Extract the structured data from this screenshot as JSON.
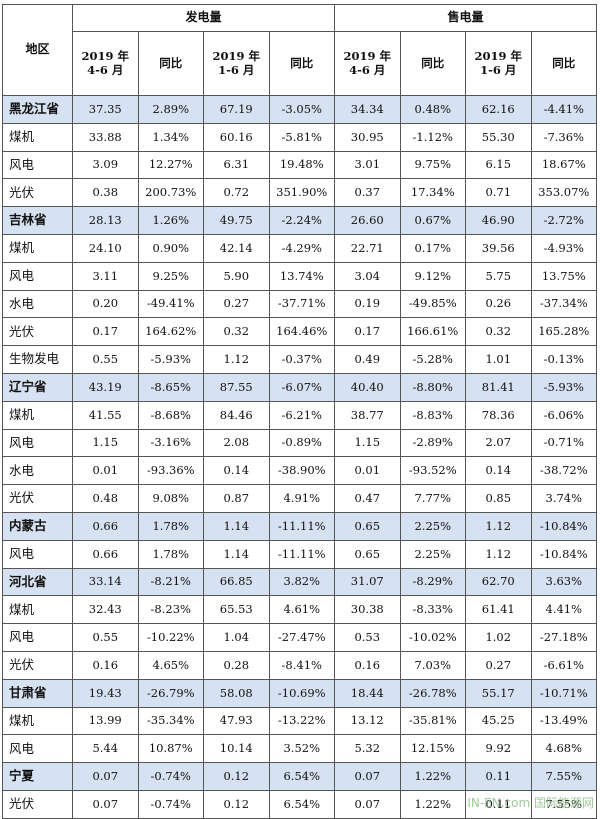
{
  "header": {
    "region": "地区",
    "generation": "发电量",
    "sales": "售电量",
    "subcols": [
      "2019 年\n4-6 月",
      "同比",
      "2019 年\n1-6 月",
      "同比",
      "2019 年\n4-6 月",
      "同比",
      "2019 年\n1-6 月",
      "同比"
    ]
  },
  "rows": [
    {
      "type": "prov",
      "cells": [
        "黑龙江省",
        "37.35",
        "2.89%",
        "67.19",
        "-3.05%",
        "34.34",
        "0.48%",
        "62.16",
        "-4.41%"
      ]
    },
    {
      "type": "sub",
      "cells": [
        "煤机",
        "33.88",
        "1.34%",
        "60.16",
        "-5.81%",
        "30.95",
        "-1.12%",
        "55.30",
        "-7.36%"
      ]
    },
    {
      "type": "sub",
      "cells": [
        "风电",
        "3.09",
        "12.27%",
        "6.31",
        "19.48%",
        "3.01",
        "9.75%",
        "6.15",
        "18.67%"
      ]
    },
    {
      "type": "sub",
      "cells": [
        "光伏",
        "0.38",
        "200.73%",
        "0.72",
        "351.90%",
        "0.37",
        "17.34%",
        "0.71",
        "353.07%"
      ]
    },
    {
      "type": "prov",
      "cells": [
        "吉林省",
        "28.13",
        "1.26%",
        "49.75",
        "-2.24%",
        "26.60",
        "0.67%",
        "46.90",
        "-2.72%"
      ]
    },
    {
      "type": "sub",
      "cells": [
        "煤机",
        "24.10",
        "0.90%",
        "42.14",
        "-4.29%",
        "22.71",
        "0.17%",
        "39.56",
        "-4.93%"
      ]
    },
    {
      "type": "sub",
      "cells": [
        "风电",
        "3.11",
        "9.25%",
        "5.90",
        "13.74%",
        "3.04",
        "9.12%",
        "5.75",
        "13.75%"
      ]
    },
    {
      "type": "sub",
      "cells": [
        "水电",
        "0.20",
        "-49.41%",
        "0.27",
        "-37.71%",
        "0.19",
        "-49.85%",
        "0.26",
        "-37.34%"
      ]
    },
    {
      "type": "sub",
      "cells": [
        "光伏",
        "0.17",
        "164.62%",
        "0.32",
        "164.46%",
        "0.17",
        "166.61%",
        "0.32",
        "165.28%"
      ]
    },
    {
      "type": "sub",
      "cells": [
        "生物发电",
        "0.55",
        "-5.93%",
        "1.12",
        "-0.37%",
        "0.49",
        "-5.28%",
        "1.01",
        "-0.13%"
      ]
    },
    {
      "type": "prov",
      "cells": [
        "辽宁省",
        "43.19",
        "-8.65%",
        "87.55",
        "-6.07%",
        "40.40",
        "-8.80%",
        "81.41",
        "-5.93%"
      ]
    },
    {
      "type": "sub",
      "cells": [
        "煤机",
        "41.55",
        "-8.68%",
        "84.46",
        "-6.21%",
        "38.77",
        "-8.83%",
        "78.36",
        "-6.06%"
      ]
    },
    {
      "type": "sub",
      "cells": [
        "风电",
        "1.15",
        "-3.16%",
        "2.08",
        "-0.89%",
        "1.15",
        "-2.89%",
        "2.07",
        "-0.71%"
      ]
    },
    {
      "type": "sub",
      "cells": [
        "水电",
        "0.01",
        "-93.36%",
        "0.14",
        "-38.90%",
        "0.01",
        "-93.52%",
        "0.14",
        "-38.72%"
      ]
    },
    {
      "type": "sub",
      "cells": [
        "光伏",
        "0.48",
        "9.08%",
        "0.87",
        "4.91%",
        "0.47",
        "7.77%",
        "0.85",
        "3.74%"
      ]
    },
    {
      "type": "prov",
      "cells": [
        "内蒙古",
        "0.66",
        "1.78%",
        "1.14",
        "-11.11%",
        "0.65",
        "2.25%",
        "1.12",
        "-10.84%"
      ]
    },
    {
      "type": "sub",
      "cells": [
        "风电",
        "0.66",
        "1.78%",
        "1.14",
        "-11.11%",
        "0.65",
        "2.25%",
        "1.12",
        "-10.84%"
      ]
    },
    {
      "type": "prov",
      "cells": [
        "河北省",
        "33.14",
        "-8.21%",
        "66.85",
        "3.82%",
        "31.07",
        "-8.29%",
        "62.70",
        "3.63%"
      ]
    },
    {
      "type": "sub",
      "cells": [
        "煤机",
        "32.43",
        "-8.23%",
        "65.53",
        "4.61%",
        "30.38",
        "-8.33%",
        "61.41",
        "4.41%"
      ]
    },
    {
      "type": "sub",
      "cells": [
        "风电",
        "0.55",
        "-10.22%",
        "1.04",
        "-27.47%",
        "0.53",
        "-10.02%",
        "1.02",
        "-27.18%"
      ]
    },
    {
      "type": "sub",
      "cells": [
        "光伏",
        "0.16",
        "4.65%",
        "0.28",
        "-8.41%",
        "0.16",
        "7.03%",
        "0.27",
        "-6.61%"
      ]
    },
    {
      "type": "prov",
      "cells": [
        "甘肃省",
        "19.43",
        "-26.79%",
        "58.08",
        "-10.69%",
        "18.44",
        "-26.78%",
        "55.17",
        "-10.71%"
      ]
    },
    {
      "type": "sub",
      "cells": [
        "煤机",
        "13.99",
        "-35.34%",
        "47.93",
        "-13.22%",
        "13.12",
        "-35.81%",
        "45.25",
        "-13.49%"
      ]
    },
    {
      "type": "sub",
      "cells": [
        "风电",
        "5.44",
        "10.87%",
        "10.14",
        "3.52%",
        "5.32",
        "12.15%",
        "9.92",
        "4.68%"
      ]
    },
    {
      "type": "prov",
      "cells": [
        "宁夏",
        "0.07",
        "-0.74%",
        "0.12",
        "6.54%",
        "0.07",
        "1.22%",
        "0.11",
        "7.55%"
      ]
    },
    {
      "type": "sub",
      "cells": [
        "光伏",
        "0.07",
        "-0.74%",
        "0.12",
        "6.54%",
        "0.07",
        "1.22%",
        "0.11",
        "7.55%"
      ]
    }
  ],
  "watermark": "IN-EN.com 国际能源网"
}
